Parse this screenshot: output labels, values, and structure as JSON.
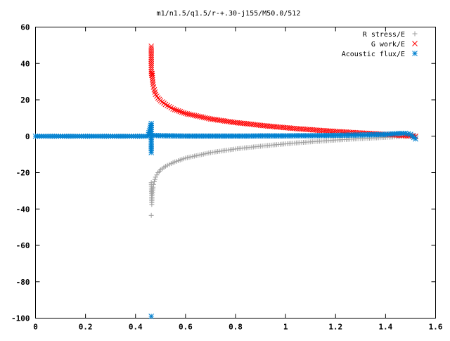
{
  "chart_data": {
    "type": "scatter",
    "title": "m1/n1.5/q1.5/r-+.30-j155/M50.0/512",
    "xlabel": "",
    "ylabel": "",
    "xlim": [
      0,
      1.6
    ],
    "ylim": [
      -100,
      60
    ],
    "xticks": [
      0,
      0.2,
      0.4,
      0.6,
      0.8,
      1,
      1.2,
      1.4,
      1.6
    ],
    "xtick_labels": [
      "0",
      "0.2",
      "0.4",
      "0.6",
      "0.8",
      "1",
      "1.2",
      "1.4",
      "1.6"
    ],
    "yticks": [
      -100,
      -80,
      -60,
      -40,
      -20,
      0,
      20,
      40,
      60
    ],
    "ytick_labels": [
      "-100",
      "-80",
      "-60",
      "-40",
      "-20",
      "0",
      "20",
      "40",
      "60"
    ],
    "grid": false,
    "legend_position": "top-right",
    "series": [
      {
        "name": "R stress/E",
        "marker": "plus",
        "color": "#a0a0a0",
        "x": [
          0.463,
          0.463,
          0.465,
          0.466,
          0.468,
          0.47,
          0.472,
          0.475,
          0.48,
          0.49,
          0.5,
          0.52,
          0.55,
          0.6,
          0.65,
          0.7,
          0.75,
          0.8,
          0.85,
          0.9,
          0.95,
          1.0,
          1.05,
          1.1,
          1.15,
          1.2,
          1.25,
          1.3,
          1.35,
          1.4,
          1.45,
          1.5,
          1.52
        ],
        "y": [
          -43.5,
          -25.5,
          -37.5,
          -33.5,
          -31,
          -28,
          -26.5,
          -25,
          -22.5,
          -20,
          -18.5,
          -16.5,
          -14.5,
          -12,
          -10.5,
          -9,
          -8,
          -7,
          -6.2,
          -5.5,
          -4.8,
          -4.2,
          -3.6,
          -3.1,
          -2.6,
          -2.1,
          -1.7,
          -1.3,
          -1.0,
          -0.6,
          -0.3,
          0,
          0.5
        ]
      },
      {
        "name": "G work/E",
        "marker": "cross",
        "color": "#ff0000",
        "x": [
          0.463,
          0.463,
          0.463,
          0.465,
          0.466,
          0.468,
          0.47,
          0.472,
          0.475,
          0.48,
          0.49,
          0.5,
          0.52,
          0.55,
          0.6,
          0.65,
          0.7,
          0.75,
          0.8,
          0.85,
          0.9,
          0.95,
          1.0,
          1.05,
          1.1,
          1.15,
          1.2,
          1.25,
          1.3,
          1.35,
          1.4,
          1.45,
          1.5,
          1.52
        ],
        "y": [
          49.5,
          41,
          35.5,
          33.5,
          34.5,
          31,
          28.5,
          27,
          25.5,
          23,
          21,
          19.5,
          17.5,
          15,
          12.5,
          11,
          9.5,
          8.5,
          7.5,
          6.8,
          6,
          5.3,
          4.7,
          4.1,
          3.6,
          3.1,
          2.6,
          2.2,
          1.8,
          1.4,
          1,
          0.6,
          0.2,
          0
        ]
      },
      {
        "name": "Acoustic flux/E",
        "marker": "star",
        "color": "#0080d0",
        "x": [
          0,
          0.025,
          0.05,
          0.075,
          0.1,
          0.125,
          0.15,
          0.175,
          0.2,
          0.225,
          0.25,
          0.275,
          0.3,
          0.325,
          0.35,
          0.375,
          0.4,
          0.425,
          0.45,
          0.463,
          0.463,
          0.463,
          0.463,
          0.47,
          0.5,
          0.55,
          0.6,
          0.65,
          0.7,
          0.75,
          0.8,
          0.85,
          0.9,
          0.95,
          1.0,
          1.05,
          1.1,
          1.15,
          1.2,
          1.25,
          1.3,
          1.35,
          1.4,
          1.45,
          1.48,
          1.5,
          1.52
        ],
        "y": [
          0,
          0,
          0,
          0,
          0,
          0,
          0,
          0,
          0,
          0,
          0,
          0,
          0,
          0,
          0,
          0,
          0,
          0,
          0,
          7,
          1.5,
          -9,
          -99,
          0.5,
          0.3,
          0.2,
          0.1,
          0.1,
          0.1,
          0.1,
          0.1,
          0.1,
          0.2,
          0.2,
          0.2,
          0.3,
          0.3,
          0.4,
          0.5,
          0.6,
          0.7,
          0.8,
          1.0,
          1.5,
          1.6,
          1.0,
          -1.5
        ]
      }
    ]
  }
}
